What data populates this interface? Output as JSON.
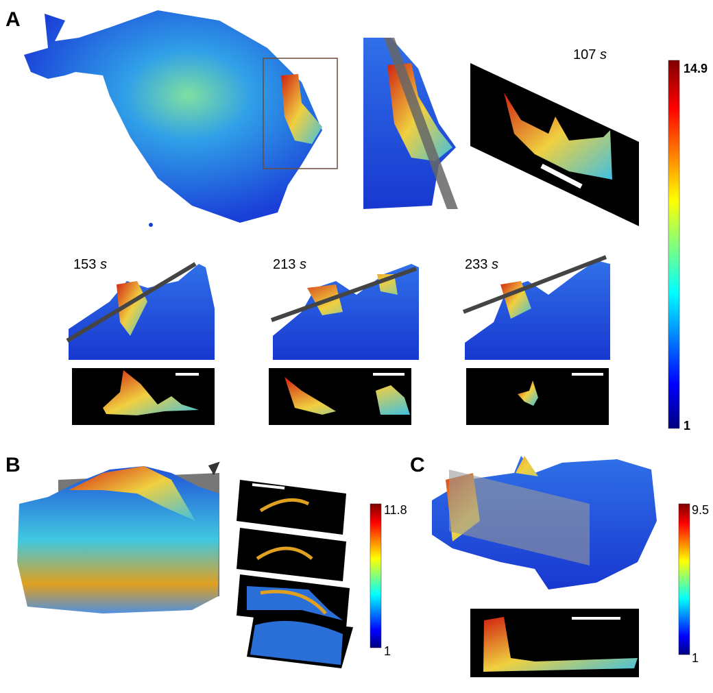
{
  "panels": [
    {
      "label": "A",
      "times": [
        {
          "value": "107",
          "unit": "s"
        },
        {
          "value": "153",
          "unit": "s"
        },
        {
          "value": "213",
          "unit": "s"
        },
        {
          "value": "233",
          "unit": "s"
        }
      ],
      "colorbar": {
        "max": "14.9",
        "min": "1"
      }
    },
    {
      "label": "B",
      "colorbar": {
        "max": "11.8",
        "min": "1"
      }
    },
    {
      "label": "C",
      "colorbar": {
        "max": "9.5",
        "min": "1"
      }
    }
  ]
}
